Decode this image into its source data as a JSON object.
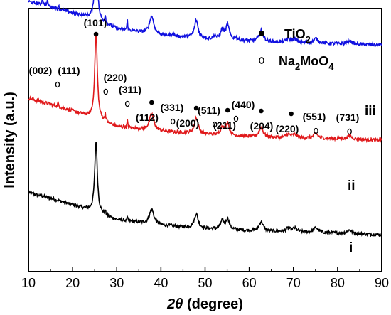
{
  "chart_data": {
    "type": "line",
    "xlabel": "2θ (degree)",
    "ylabel": "Intensity (a.u.)",
    "xlim": [
      10,
      90
    ],
    "xticks": [
      10,
      20,
      30,
      40,
      50,
      60,
      70,
      80,
      90
    ],
    "yticks_shown": false,
    "grid": false,
    "legend_position": "top-right",
    "legend": [
      {
        "marker": "filled-circle",
        "label_main": "TiO",
        "label_sub": "2",
        "label_tail": ""
      },
      {
        "marker": "open-circle",
        "label_main": "Na",
        "label_sub": "2",
        "label_tail": "MoO",
        "label_sub2": "4"
      }
    ],
    "series": [
      {
        "name": "i",
        "color": "#000000",
        "baseline": [
          [
            10,
            0.62
          ],
          [
            15,
            0.54
          ],
          [
            20,
            0.44
          ],
          [
            23,
            0.38
          ],
          [
            30,
            0.22
          ],
          [
            40,
            0.14
          ],
          [
            50,
            0.09
          ],
          [
            60,
            0.06
          ],
          [
            70,
            0.04
          ],
          [
            80,
            0.025
          ],
          [
            90,
            0.0
          ]
        ],
        "peaks": [
          [
            25.3,
            1.05,
            0.35
          ],
          [
            27.4,
            0.06,
            0.12
          ],
          [
            32.4,
            0.05,
            0.1
          ],
          [
            37.9,
            0.22,
            0.6
          ],
          [
            48.0,
            0.21,
            0.5
          ],
          [
            53.9,
            0.12,
            0.45
          ],
          [
            55.1,
            0.16,
            0.45
          ],
          [
            62.7,
            0.14,
            0.55
          ],
          [
            68.8,
            0.05,
            0.6
          ],
          [
            70.3,
            0.05,
            0.6
          ],
          [
            75.1,
            0.07,
            0.6
          ],
          [
            82.7,
            0.05,
            0.6
          ]
        ]
      },
      {
        "name": "ii",
        "color": "#e0191b",
        "baseline": [
          [
            10,
            0.62
          ],
          [
            15,
            0.53
          ],
          [
            20,
            0.43
          ],
          [
            23,
            0.36
          ],
          [
            30,
            0.2
          ],
          [
            40,
            0.13
          ],
          [
            50,
            0.085
          ],
          [
            60,
            0.05
          ],
          [
            70,
            0.03
          ],
          [
            80,
            0.02
          ],
          [
            90,
            0.0
          ]
        ],
        "peaks": [
          [
            16.7,
            0.06,
            0.1
          ],
          [
            25.3,
            1.28,
            0.35
          ],
          [
            27.4,
            0.12,
            0.12
          ],
          [
            32.4,
            0.1,
            0.1
          ],
          [
            37.9,
            0.24,
            0.6
          ],
          [
            48.0,
            0.24,
            0.5
          ],
          [
            53.9,
            0.12,
            0.45
          ],
          [
            55.1,
            0.19,
            0.45
          ],
          [
            62.7,
            0.14,
            0.55
          ],
          [
            68.8,
            0.05,
            0.6
          ],
          [
            70.3,
            0.05,
            0.6
          ],
          [
            75.1,
            0.07,
            0.6
          ],
          [
            82.7,
            0.05,
            0.6
          ]
        ]
      },
      {
        "name": "iii",
        "color": "#1010e0",
        "baseline": [
          [
            10,
            0.64
          ],
          [
            15,
            0.56
          ],
          [
            20,
            0.47
          ],
          [
            23,
            0.42
          ],
          [
            30,
            0.24
          ],
          [
            40,
            0.14
          ],
          [
            50,
            0.09
          ],
          [
            60,
            0.055
          ],
          [
            70,
            0.03
          ],
          [
            80,
            0.015
          ],
          [
            90,
            0.0
          ]
        ],
        "peaks": [
          [
            13.2,
            0.1,
            0.15
          ],
          [
            14.3,
            0.08,
            0.15
          ],
          [
            16.8,
            0.06,
            0.12
          ],
          [
            25.3,
            1.05,
            0.35
          ],
          [
            27.4,
            0.12,
            0.12
          ],
          [
            32.4,
            0.14,
            0.1
          ],
          [
            37.9,
            0.26,
            0.6
          ],
          [
            42.7,
            0.04,
            0.3
          ],
          [
            48.0,
            0.26,
            0.5
          ],
          [
            52.2,
            0.05,
            0.3
          ],
          [
            53.9,
            0.14,
            0.45
          ],
          [
            55.1,
            0.22,
            0.45
          ],
          [
            57.0,
            0.04,
            0.3
          ],
          [
            62.7,
            0.16,
            0.55
          ],
          [
            68.8,
            0.05,
            0.6
          ],
          [
            70.3,
            0.05,
            0.6
          ],
          [
            75.1,
            0.07,
            0.6
          ],
          [
            82.7,
            0.05,
            0.6
          ]
        ]
      }
    ],
    "annotations": [
      {
        "text": "(101)",
        "x": 25.3,
        "marker": "filled"
      },
      {
        "text": "(002)",
        "x": 12.6,
        "marker": "none"
      },
      {
        "text": "(111)",
        "x": 16.6,
        "marker": "open"
      },
      {
        "text": "(220)",
        "x": 27.5,
        "marker": "open"
      },
      {
        "text": "(311)",
        "x": 32.4,
        "marker": "open"
      },
      {
        "text": "(112)",
        "x": 37.9,
        "marker": "filled"
      },
      {
        "text": "(331)",
        "x": 42.7,
        "marker": "open"
      },
      {
        "text": "(200)",
        "x": 48.0,
        "marker": "filled"
      },
      {
        "text": "(511)",
        "x": 52.2,
        "marker": "open"
      },
      {
        "text": "(211)",
        "x": 55.1,
        "marker": "filled"
      },
      {
        "text": "(440)",
        "x": 57.0,
        "marker": "open"
      },
      {
        "text": "(204)",
        "x": 62.7,
        "marker": "filled"
      },
      {
        "text": "(220)",
        "x": 69.5,
        "marker": "filled"
      },
      {
        "text": "(551)",
        "x": 75.1,
        "marker": "open"
      },
      {
        "text": "(731)",
        "x": 82.7,
        "marker": "open"
      }
    ]
  }
}
